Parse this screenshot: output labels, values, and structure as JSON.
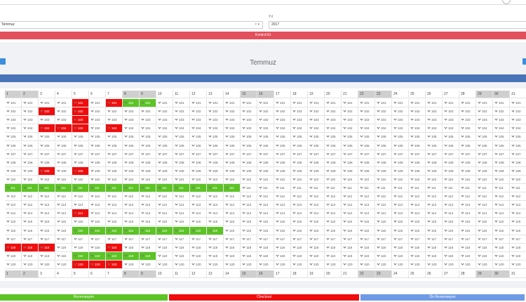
{
  "form": {
    "month_value": "Temmuz",
    "year_label": "Yıl",
    "year_value": "2017",
    "button": "Kontrol Et"
  },
  "calendar": {
    "title": "Temmuz",
    "days": [
      1,
      2,
      3,
      4,
      5,
      6,
      7,
      8,
      9,
      10,
      11,
      12,
      13,
      14,
      15,
      16,
      17,
      18,
      19,
      20,
      21,
      22,
      23,
      24,
      25,
      26,
      27,
      28,
      29,
      30,
      31
    ],
    "weekend_days": [
      1,
      2,
      8,
      9,
      15,
      16,
      22,
      23,
      29,
      30
    ],
    "rows": [
      {
        "room": "101",
        "reserved": [
          8,
          9
        ],
        "checkout": [
          5,
          7
        ]
      },
      {
        "room": "102",
        "reserved": [],
        "checkout": [
          3,
          5
        ]
      },
      {
        "room": "103",
        "reserved": [],
        "checkout": [
          5
        ]
      },
      {
        "room": "104",
        "reserved": [],
        "checkout": [
          3,
          4,
          5,
          7
        ]
      },
      {
        "room": "105",
        "reserved": [],
        "checkout": []
      },
      {
        "room": "106",
        "reserved": [],
        "checkout": []
      },
      {
        "room": "107",
        "reserved": [],
        "checkout": []
      },
      {
        "room": "108",
        "reserved": [],
        "checkout": []
      },
      {
        "room": "109",
        "reserved": [],
        "checkout": [
          3,
          5
        ]
      },
      {
        "room": "110",
        "reserved": [],
        "checkout": []
      },
      {
        "room": "111",
        "reserved": [
          1,
          2,
          3,
          4,
          5,
          6,
          7,
          8,
          9,
          10,
          11,
          12,
          13,
          14
        ],
        "checkout": []
      },
      {
        "room": "112",
        "reserved": [],
        "checkout": []
      },
      {
        "room": "113",
        "reserved": [],
        "checkout": []
      },
      {
        "room": "114",
        "reserved": [],
        "checkout": [
          5
        ]
      },
      {
        "room": "115",
        "reserved": [],
        "checkout": []
      },
      {
        "room": "116",
        "reserved": [
          5,
          6,
          7,
          8,
          9,
          10,
          11,
          12,
          13
        ],
        "checkout": []
      },
      {
        "room": "117",
        "reserved": [],
        "checkout": []
      },
      {
        "room": "118",
        "reserved": [],
        "checkout": [
          1,
          2,
          3,
          7
        ]
      },
      {
        "room": "119",
        "reserved": [
          5,
          6,
          7,
          8,
          9
        ],
        "checkout": []
      },
      {
        "room": "120",
        "reserved": [],
        "checkout": [
          5,
          6,
          7
        ]
      }
    ]
  },
  "legend": [
    {
      "label": "Rezervasyon",
      "color": "#5cc425"
    },
    {
      "label": "Checkout",
      "color": "#f00d0d"
    },
    {
      "label": "Ön Rezervasyon",
      "color": "#6f9be6"
    }
  ]
}
